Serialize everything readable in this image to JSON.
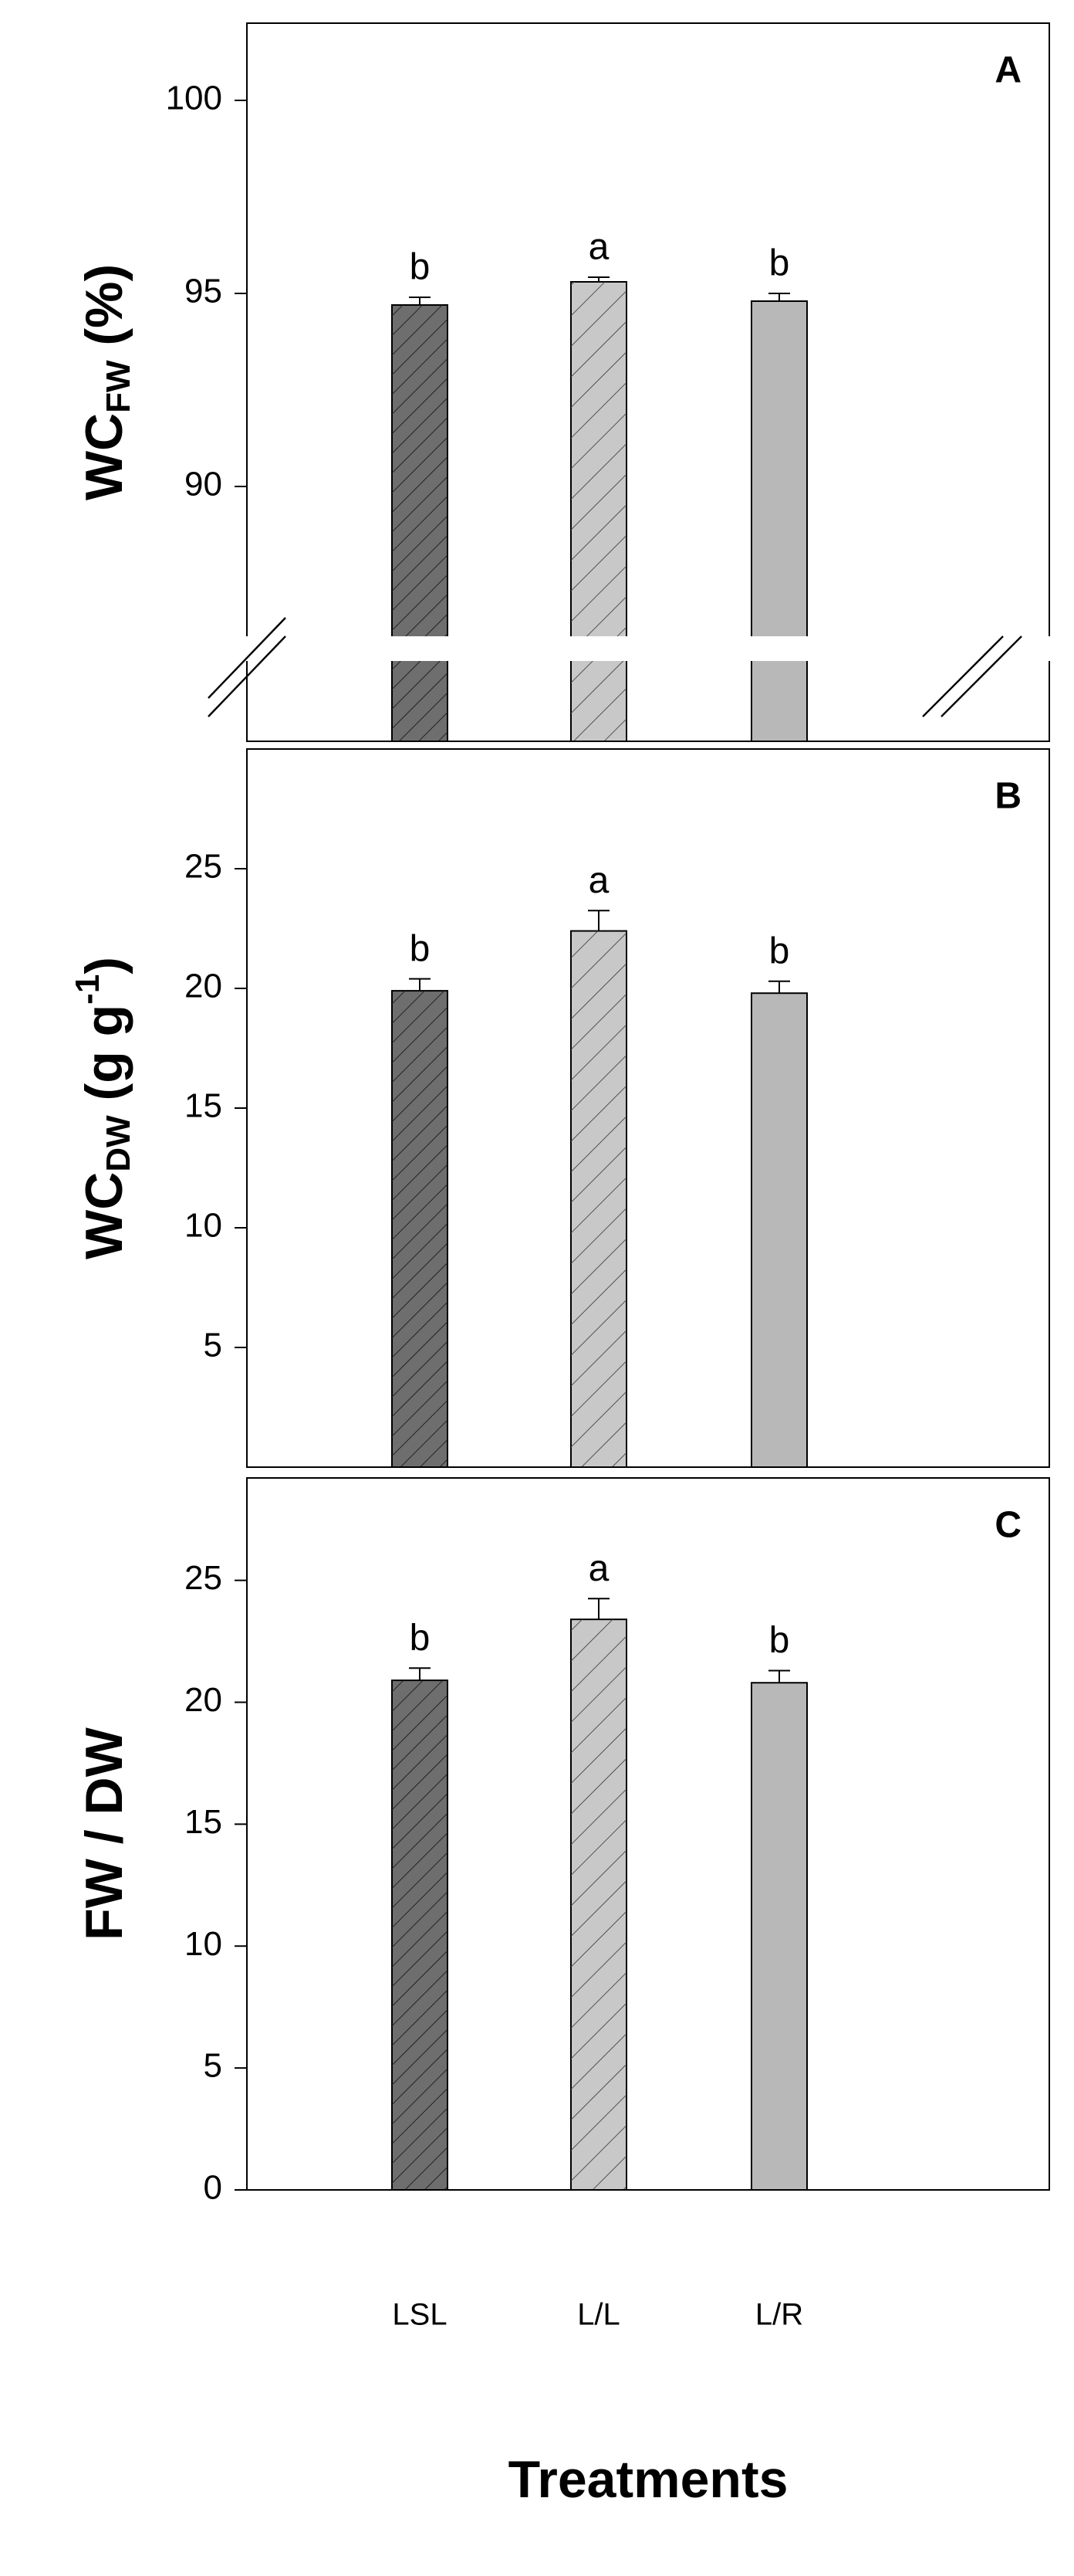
{
  "chart_data": [
    {
      "type": "bar",
      "panel_label": "A",
      "ylabel": [
        "WC",
        "FW",
        " (%)"
      ],
      "values": [
        94.7,
        95.3,
        94.8
      ],
      "errors": [
        0.2,
        0.12,
        0.2
      ],
      "annotations": [
        "b",
        "a",
        "b"
      ],
      "colors": [
        "#6e6e6e",
        "#c8c8c8",
        "#b8b8b8"
      ],
      "ylim": [
        83.4,
        102
      ],
      "yticks": [
        90,
        95,
        100
      ]
    },
    {
      "type": "bar",
      "panel_label": "B",
      "ylabel": [
        "WC",
        "DW",
        " (g g",
        "-1",
        ")"
      ],
      "values": [
        19.9,
        22.4,
        19.8
      ],
      "errors": [
        0.5,
        0.85,
        0.5
      ],
      "annotations": [
        "b",
        "a",
        "b"
      ],
      "colors": [
        "#6e6e6e",
        "#c8c8c8",
        "#b8b8b8"
      ],
      "ylim": [
        0,
        30
      ],
      "yticks": [
        5,
        10,
        15,
        20,
        25
      ]
    },
    {
      "type": "bar",
      "panel_label": "C",
      "ylabel": [
        "FW / DW"
      ],
      "categories": [
        "LSL",
        "L/L",
        "L/R"
      ],
      "xlabel": "Treatments",
      "values": [
        20.9,
        23.4,
        20.8
      ],
      "errors": [
        0.5,
        0.85,
        0.5
      ],
      "annotations": [
        "b",
        "a",
        "b"
      ],
      "colors": [
        "#6e6e6e",
        "#c8c8c8",
        "#b8b8b8"
      ],
      "ylim": [
        0,
        29.2
      ],
      "yticks": [
        0,
        5,
        10,
        15,
        20,
        25
      ]
    }
  ]
}
